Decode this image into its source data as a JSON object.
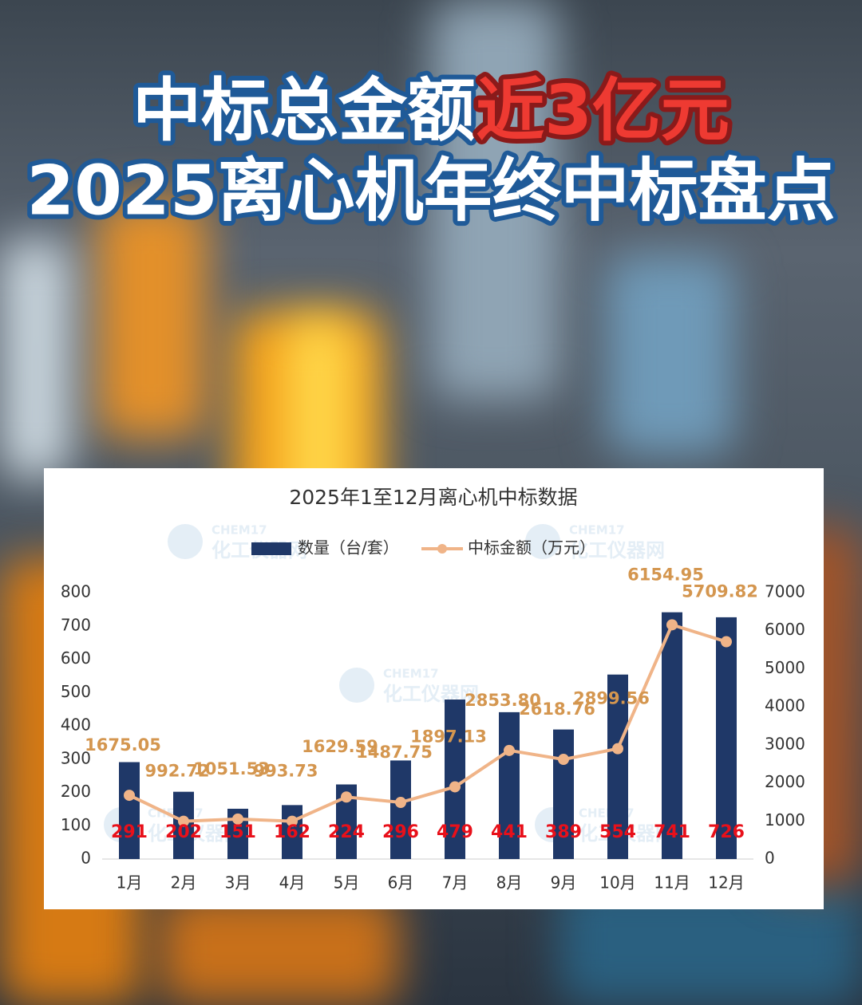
{
  "headline": {
    "line1_part1": "中标总金额",
    "line1_part2": "近3亿元",
    "line2": "2025离心机年终中标盘点"
  },
  "chart_data": {
    "type": "bar",
    "title": "2025年1至12月离心机中标数据",
    "watermark": [
      "CHEM17",
      "化工仪器网"
    ],
    "categories": [
      "1月",
      "2月",
      "3月",
      "4月",
      "5月",
      "6月",
      "7月",
      "8月",
      "9月",
      "10月",
      "11月",
      "12月"
    ],
    "series": [
      {
        "name": "数量（台/套）",
        "type": "bar",
        "color": "#1f3868",
        "label_color": "#e8101a",
        "values": [
          291,
          202,
          151,
          162,
          224,
          296,
          479,
          441,
          389,
          554,
          741,
          726
        ]
      },
      {
        "name": "中标金额（万元）",
        "type": "line",
        "axis": "y2",
        "color": "#f0b488",
        "label_color": "#d4964f",
        "values": [
          1675.05,
          992.72,
          1051.53,
          993.73,
          1629.59,
          1487.75,
          1897.13,
          2853.8,
          2618.76,
          2899.56,
          6154.95,
          5709.82
        ],
        "value_labels": [
          "1675.05",
          "992.72",
          "1051.53",
          "993.73",
          "1629.59",
          "1487.75",
          "1897.13",
          "2853.80",
          "2618.76",
          "2899.56",
          "6154.95",
          "5709.82"
        ]
      }
    ],
    "ylim": [
      0,
      800
    ],
    "yticks": [
      0,
      100,
      200,
      300,
      400,
      500,
      600,
      700,
      800
    ],
    "y2lim": [
      0,
      7000
    ],
    "y2ticks": [
      0,
      1000,
      2000,
      3000,
      4000,
      5000,
      6000,
      7000
    ],
    "grid": false,
    "legend": "top"
  }
}
